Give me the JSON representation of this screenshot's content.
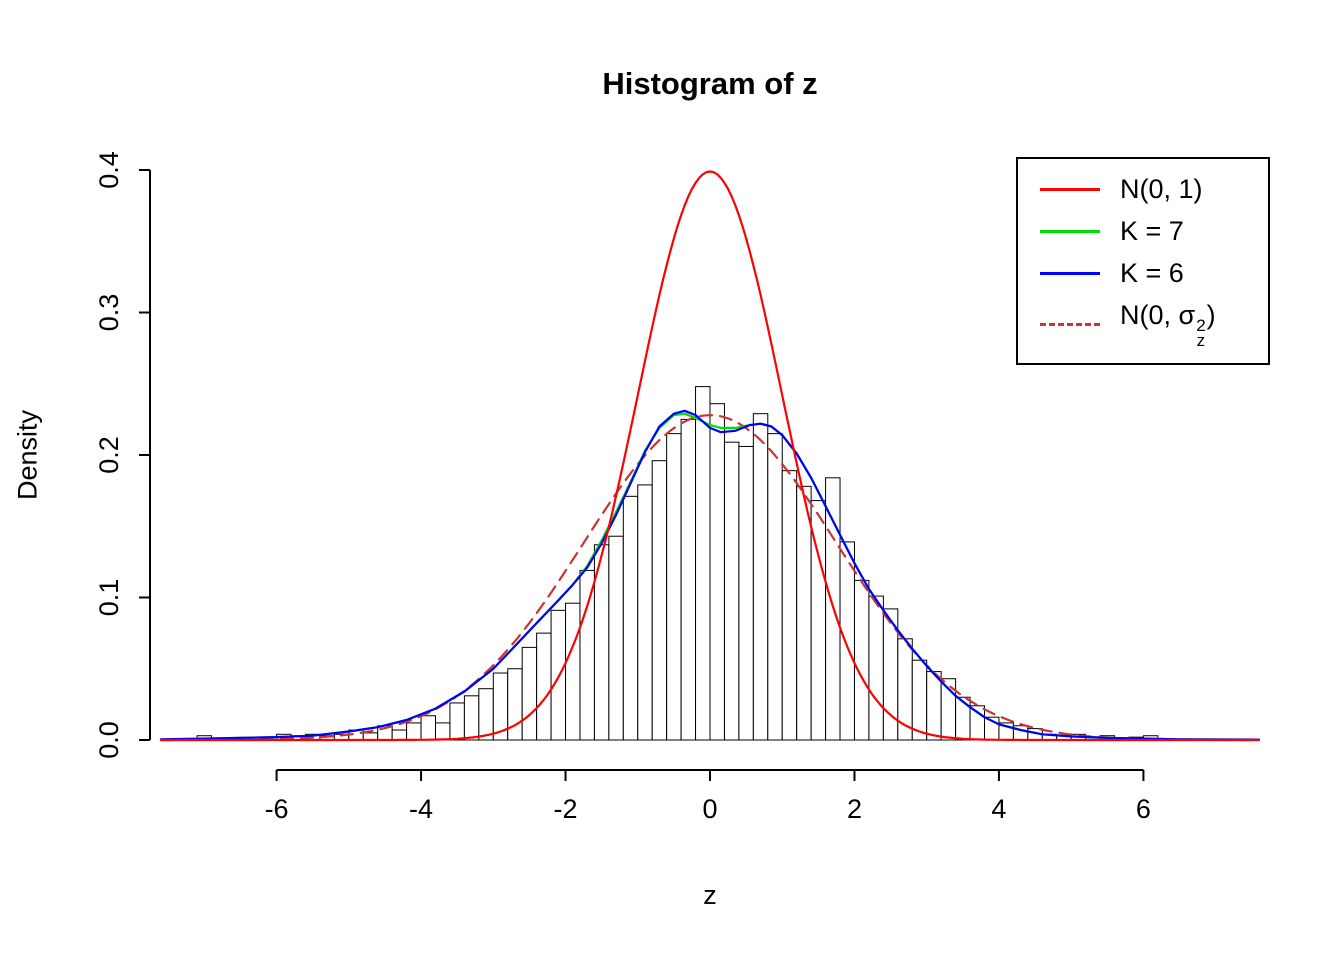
{
  "chart_data": {
    "type": "histogram",
    "title": "Histogram of z",
    "xlabel": "z",
    "ylabel": "Density",
    "xlim": [
      -7.6,
      7.6
    ],
    "ylim": [
      0,
      0.4
    ],
    "x_ticks": [
      -6,
      -4,
      -2,
      0,
      2,
      4,
      6
    ],
    "y_ticks": [
      0,
      0.1,
      0.2,
      0.3,
      0.4
    ],
    "grid": false,
    "histogram": {
      "bin_width": 0.2,
      "bar_fill": "#FFFFFF",
      "bar_stroke": "#000000",
      "bars": [
        [
          -7.0,
          0.003
        ],
        [
          -5.9,
          0.004
        ],
        [
          -5.7,
          0.003
        ],
        [
          -5.5,
          0.004
        ],
        [
          -5.3,
          0.003
        ],
        [
          -5.1,
          0.004
        ],
        [
          -4.9,
          0.007
        ],
        [
          -4.7,
          0.005
        ],
        [
          -4.5,
          0.01
        ],
        [
          -4.3,
          0.007
        ],
        [
          -4.1,
          0.012
        ],
        [
          -3.9,
          0.017
        ],
        [
          -3.7,
          0.012
        ],
        [
          -3.5,
          0.026
        ],
        [
          -3.3,
          0.031
        ],
        [
          -3.1,
          0.036
        ],
        [
          -2.9,
          0.047
        ],
        [
          -2.7,
          0.05
        ],
        [
          -2.5,
          0.065
        ],
        [
          -2.3,
          0.075
        ],
        [
          -2.1,
          0.091
        ],
        [
          -1.9,
          0.096
        ],
        [
          -1.7,
          0.119
        ],
        [
          -1.5,
          0.137
        ],
        [
          -1.3,
          0.143
        ],
        [
          -1.1,
          0.171
        ],
        [
          -0.9,
          0.179
        ],
        [
          -0.7,
          0.196
        ],
        [
          -0.5,
          0.215
        ],
        [
          -0.3,
          0.225
        ],
        [
          -0.1,
          0.248
        ],
        [
          0.1,
          0.236
        ],
        [
          0.3,
          0.209
        ],
        [
          0.5,
          0.206
        ],
        [
          0.7,
          0.229
        ],
        [
          0.9,
          0.215
        ],
        [
          1.1,
          0.189
        ],
        [
          1.3,
          0.178
        ],
        [
          1.5,
          0.168
        ],
        [
          1.7,
          0.184
        ],
        [
          1.9,
          0.139
        ],
        [
          2.1,
          0.112
        ],
        [
          2.3,
          0.101
        ],
        [
          2.5,
          0.092
        ],
        [
          2.7,
          0.071
        ],
        [
          2.9,
          0.056
        ],
        [
          3.1,
          0.048
        ],
        [
          3.3,
          0.043
        ],
        [
          3.5,
          0.03
        ],
        [
          3.7,
          0.024
        ],
        [
          3.9,
          0.016
        ],
        [
          4.1,
          0.012
        ],
        [
          4.3,
          0.01
        ],
        [
          4.5,
          0.008
        ],
        [
          4.7,
          0.004
        ],
        [
          4.9,
          0.003
        ],
        [
          5.1,
          0.004
        ],
        [
          5.3,
          0.002
        ],
        [
          5.5,
          0.003
        ],
        [
          5.9,
          0.002
        ],
        [
          6.1,
          0.003
        ]
      ]
    },
    "curves": [
      {
        "name": "N(0, 1)",
        "kind": "normal",
        "mean": 0,
        "sd": 1,
        "color": "#FF0000",
        "style": "solid"
      },
      {
        "name": "K = 7",
        "kind": "points",
        "color": "#00DD00",
        "style": "solid",
        "points": [
          [
            -7.6,
            0.0005
          ],
          [
            -7,
            0.001
          ],
          [
            -6.5,
            0.0015
          ],
          [
            -6,
            0.002
          ],
          [
            -5.5,
            0.003
          ],
          [
            -5,
            0.006
          ],
          [
            -4.6,
            0.009
          ],
          [
            -4.2,
            0.014
          ],
          [
            -3.8,
            0.022
          ],
          [
            -3.4,
            0.034
          ],
          [
            -3,
            0.05
          ],
          [
            -2.7,
            0.066
          ],
          [
            -2.4,
            0.082
          ],
          [
            -2.1,
            0.098
          ],
          [
            -1.9,
            0.109
          ],
          [
            -1.7,
            0.122
          ],
          [
            -1.5,
            0.14
          ],
          [
            -1.3,
            0.16
          ],
          [
            -1.1,
            0.181
          ],
          [
            -0.9,
            0.203
          ],
          [
            -0.7,
            0.219
          ],
          [
            -0.5,
            0.228
          ],
          [
            -0.35,
            0.229
          ],
          [
            -0.2,
            0.226
          ],
          [
            0,
            0.221
          ],
          [
            0.15,
            0.219
          ],
          [
            0.35,
            0.219
          ],
          [
            0.55,
            0.221
          ],
          [
            0.7,
            0.222
          ],
          [
            0.85,
            0.22
          ],
          [
            1,
            0.214
          ],
          [
            1.2,
            0.201
          ],
          [
            1.4,
            0.184
          ],
          [
            1.6,
            0.164
          ],
          [
            1.8,
            0.144
          ],
          [
            2,
            0.124
          ],
          [
            2.2,
            0.106
          ],
          [
            2.4,
            0.091
          ],
          [
            2.6,
            0.077
          ],
          [
            2.8,
            0.064
          ],
          [
            3,
            0.052
          ],
          [
            3.2,
            0.041
          ],
          [
            3.4,
            0.031
          ],
          [
            3.6,
            0.023
          ],
          [
            3.8,
            0.016
          ],
          [
            4,
            0.011
          ],
          [
            4.3,
            0.007
          ],
          [
            4.6,
            0.004
          ],
          [
            5,
            0.0025
          ],
          [
            5.5,
            0.0015
          ],
          [
            6,
            0.001
          ],
          [
            6.5,
            0.0005
          ],
          [
            7.6,
            0.0003
          ]
        ]
      },
      {
        "name": "K = 6",
        "kind": "points",
        "color": "#0000FF",
        "style": "solid",
        "points": [
          [
            -7.6,
            0.0005
          ],
          [
            -7,
            0.001
          ],
          [
            -6.5,
            0.0015
          ],
          [
            -6,
            0.002
          ],
          [
            -5.5,
            0.003
          ],
          [
            -5,
            0.006
          ],
          [
            -4.6,
            0.009
          ],
          [
            -4.2,
            0.014
          ],
          [
            -3.8,
            0.022
          ],
          [
            -3.4,
            0.034
          ],
          [
            -3,
            0.05
          ],
          [
            -2.7,
            0.066
          ],
          [
            -2.4,
            0.082
          ],
          [
            -2.1,
            0.098
          ],
          [
            -1.9,
            0.109
          ],
          [
            -1.7,
            0.121
          ],
          [
            -1.5,
            0.138
          ],
          [
            -1.3,
            0.158
          ],
          [
            -1.1,
            0.18
          ],
          [
            -0.9,
            0.202
          ],
          [
            -0.7,
            0.22
          ],
          [
            -0.5,
            0.229
          ],
          [
            -0.35,
            0.231
          ],
          [
            -0.2,
            0.228
          ],
          [
            0,
            0.219
          ],
          [
            0.15,
            0.216
          ],
          [
            0.35,
            0.217
          ],
          [
            0.55,
            0.221
          ],
          [
            0.7,
            0.222
          ],
          [
            0.85,
            0.22
          ],
          [
            1,
            0.214
          ],
          [
            1.2,
            0.201
          ],
          [
            1.4,
            0.184
          ],
          [
            1.6,
            0.164
          ],
          [
            1.8,
            0.144
          ],
          [
            2,
            0.124
          ],
          [
            2.2,
            0.106
          ],
          [
            2.4,
            0.091
          ],
          [
            2.6,
            0.077
          ],
          [
            2.8,
            0.064
          ],
          [
            3,
            0.052
          ],
          [
            3.2,
            0.041
          ],
          [
            3.4,
            0.031
          ],
          [
            3.6,
            0.023
          ],
          [
            3.8,
            0.016
          ],
          [
            4,
            0.011
          ],
          [
            4.3,
            0.007
          ],
          [
            4.6,
            0.004
          ],
          [
            5,
            0.0025
          ],
          [
            5.5,
            0.0015
          ],
          [
            6,
            0.001
          ],
          [
            6.5,
            0.0005
          ],
          [
            7.6,
            0.0003
          ]
        ]
      },
      {
        "name": "N(0, sigma_z^2)",
        "kind": "normal",
        "mean": 0,
        "sd": 1.75,
        "color": "#CD3333",
        "style": "dashed"
      }
    ],
    "draw_order": [
      3,
      1,
      2,
      0
    ],
    "legend": {
      "position": "topright",
      "entries": [
        {
          "label": "N(0, 1)",
          "color": "#FF0000",
          "dash": false
        },
        {
          "label": "K = 7",
          "color": "#00DD00",
          "dash": false
        },
        {
          "label": "K = 6",
          "color": "#0000FF",
          "dash": false
        },
        {
          "expr": {
            "prefix": "N(0, ",
            "symbol": "σ",
            "sup": "2",
            "sub": "z",
            "suffix": ")"
          },
          "color": "#CD3333",
          "dash": true
        }
      ]
    }
  }
}
